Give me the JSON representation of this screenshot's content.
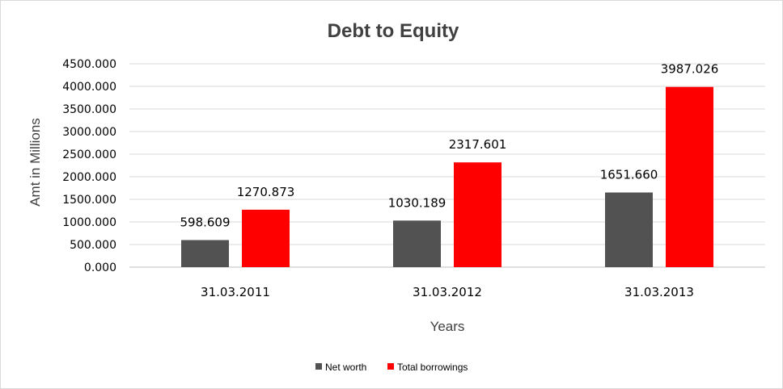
{
  "chart_data": {
    "type": "bar",
    "title": "Debt to Equity",
    "xlabel": "Years",
    "ylabel": "Amt in Millions",
    "categories": [
      "31.03.2011",
      "31.03.2012",
      "31.03.2013"
    ],
    "series": [
      {
        "name": "Net worth",
        "values": [
          598.609,
          1030.189,
          1651.66
        ],
        "labels": [
          "598.609",
          "1030.189",
          "1651.660"
        ],
        "color": "#525252"
      },
      {
        "name": "Total borrowings",
        "values": [
          1270.873,
          2317.601,
          3987.026
        ],
        "labels": [
          "1270.873",
          "2317.601",
          "3987.026"
        ],
        "color": "#ff0000"
      }
    ],
    "ylim": [
      0,
      4500
    ],
    "yticks": [
      "0.000",
      "500.000",
      "1000.000",
      "1500.000",
      "2000.000",
      "2500.000",
      "3000.000",
      "3500.000",
      "4000.000",
      "4500.000"
    ],
    "grid": true,
    "legend_position": "bottom"
  }
}
